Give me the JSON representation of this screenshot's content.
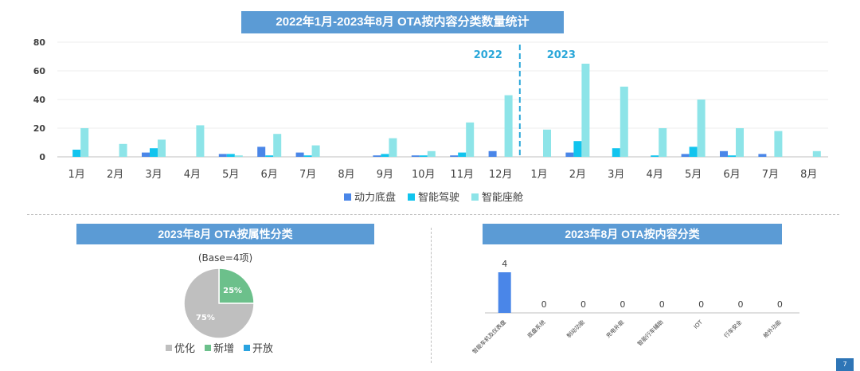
{
  "main_chart": {
    "title": "2022年1月-2023年8月 OTA按内容分类数量统计",
    "year_labels": [
      "2022",
      "2023"
    ]
  },
  "pie_panel": {
    "title": "2023年8月 OTA按属性分类",
    "base_note": "(Base=4项)"
  },
  "bar_panel": {
    "title": "2023年8月 OTA按内容分类"
  },
  "page_number": "7",
  "colors": {
    "banner": "#5b9bd5",
    "powertrain": "#4a86e8",
    "adas": "#11c4ee",
    "cockpit": "#8de4e8",
    "year_divider": "#2aa7d9",
    "pie_optimize": "#bfbfbf",
    "pie_new": "#6cc08b",
    "pie_open": "#2aa3e0"
  },
  "chart_data": [
    {
      "type": "bar",
      "title": "2022年1月-2023年8月 OTA按内容分类数量统计",
      "categories": [
        "1月",
        "2月",
        "3月",
        "4月",
        "5月",
        "6月",
        "7月",
        "8月",
        "9月",
        "10月",
        "11月",
        "12月",
        "1月",
        "2月",
        "3月",
        "4月",
        "5月",
        "6月",
        "7月",
        "8月"
      ],
      "series": [
        {
          "name": "动力底盘",
          "values": [
            0,
            0,
            3,
            0,
            2,
            7,
            3,
            0,
            1,
            1,
            1,
            4,
            0,
            3,
            0,
            0,
            2,
            4,
            2,
            0
          ]
        },
        {
          "name": "智能驾驶",
          "values": [
            5,
            0,
            6,
            0,
            2,
            1,
            1,
            0,
            2,
            1,
            3,
            0,
            0,
            11,
            6,
            1,
            7,
            1,
            0,
            0
          ]
        },
        {
          "name": "智能座舱",
          "values": [
            20,
            9,
            12,
            22,
            1,
            16,
            8,
            0,
            13,
            4,
            24,
            43,
            19,
            65,
            49,
            20,
            40,
            20,
            18,
            4
          ]
        }
      ],
      "yticks": [
        0,
        20,
        40,
        60,
        80
      ],
      "ylim": [
        0,
        80
      ],
      "year_split_after_index": 11,
      "year_labels": [
        "2022",
        "2023"
      ],
      "legend_position": "bottom"
    },
    {
      "type": "pie",
      "title": "2023年8月 OTA按属性分类",
      "labels": [
        "优化",
        "新增",
        "开放"
      ],
      "values": [
        75,
        25,
        0
      ],
      "value_labels": [
        "75%",
        "25%",
        ""
      ],
      "legend_position": "bottom"
    },
    {
      "type": "bar",
      "title": "2023年8月 OTA按内容分类",
      "categories": [
        "智能车机及仪表盘",
        "底盘系统",
        "制动功能",
        "充电补能",
        "智能行车辅助",
        "IOT",
        "行车安全",
        "舱外功能"
      ],
      "values": [
        4,
        0,
        0,
        0,
        0,
        0,
        0,
        0
      ],
      "ylim": [
        0,
        4
      ]
    }
  ]
}
